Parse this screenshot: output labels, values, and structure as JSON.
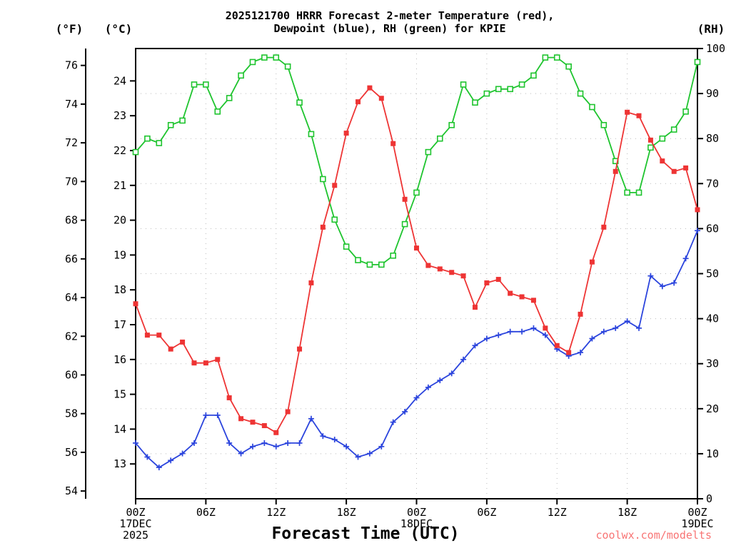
{
  "header": {
    "title_line1": "2025121700 HRRR Forecast 2-meter Temperature (red),",
    "title_line2": "Dewpoint (blue), RH (green) for KPIE",
    "unit_left_f": "(°F)",
    "unit_left_c": "(°C)",
    "unit_right_rh": "(RH)"
  },
  "footer": {
    "x_axis_label": "Forecast Time (UTC)",
    "watermark": "coolwx.com/modelts"
  },
  "colors": {
    "temperature": "#ee3434",
    "dewpoint": "#2b44dd",
    "rh": "#1ec42e",
    "grid": "#bbbbbb",
    "axis": "#000000",
    "watermark": "#f87474"
  },
  "chart_data": {
    "type": "line",
    "title": "2025121700 HRRR Forecast 2-meter Temperature (red), Dewpoint (blue), RH (green) for KPIE",
    "station": "KPIE",
    "model_run": "2025121700 HRRR",
    "x_axis": {
      "label": "Forecast Time (UTC)",
      "hours_span": 48,
      "tick_hours": [
        0,
        6,
        12,
        18,
        24,
        30,
        36,
        42,
        48
      ],
      "tick_labels": [
        "00Z",
        "06Z",
        "12Z",
        "18Z",
        "00Z",
        "06Z",
        "12Z",
        "18Z",
        "00Z"
      ],
      "date_labels": [
        {
          "hour": 0,
          "lines": [
            "17DEC",
            "2025"
          ]
        },
        {
          "hour": 24,
          "lines": [
            "18DEC"
          ]
        },
        {
          "hour": 48,
          "lines": [
            "19DEC"
          ]
        }
      ]
    },
    "y_axes": {
      "fahrenheit_ticks": [
        54,
        56,
        58,
        60,
        62,
        64,
        66,
        68,
        70,
        72,
        74,
        76
      ],
      "celsius_ticks": [
        13,
        14,
        15,
        16,
        17,
        18,
        19,
        20,
        21,
        22,
        23,
        24
      ],
      "celsius_range": [
        12.0,
        24.93
      ],
      "rh_ticks": [
        0,
        10,
        20,
        30,
        40,
        50,
        60,
        70,
        80,
        90,
        100
      ],
      "rh_range": [
        0,
        100
      ]
    },
    "series": [
      {
        "id": "temperature",
        "name": "2-meter Temperature (°C)",
        "axis": "celsius",
        "marker": "filled-square",
        "color": "#ee3434",
        "values": [
          17.6,
          16.7,
          16.7,
          16.3,
          16.5,
          15.9,
          15.9,
          16.0,
          14.9,
          14.3,
          14.2,
          14.1,
          13.9,
          14.5,
          16.3,
          18.2,
          19.8,
          21.0,
          22.5,
          23.4,
          23.8,
          23.5,
          22.2,
          20.6,
          19.2,
          18.7,
          18.6,
          18.5,
          18.4,
          17.5,
          18.2,
          18.3,
          17.9,
          17.8,
          17.7,
          16.9,
          16.4,
          16.2,
          17.3,
          18.8,
          19.8,
          21.4,
          23.1,
          23.0,
          22.3,
          21.7,
          21.4,
          21.5,
          20.3
        ]
      },
      {
        "id": "dewpoint",
        "name": "Dewpoint (°C)",
        "axis": "celsius",
        "marker": "plus",
        "color": "#2b44dd",
        "values": [
          13.6,
          13.2,
          12.9,
          13.1,
          13.3,
          13.6,
          14.4,
          14.4,
          13.6,
          13.3,
          13.5,
          13.6,
          13.5,
          13.6,
          13.6,
          14.3,
          13.8,
          13.7,
          13.5,
          13.2,
          13.3,
          13.5,
          14.2,
          14.5,
          14.9,
          15.2,
          15.4,
          15.6,
          16.0,
          16.4,
          16.6,
          16.7,
          16.8,
          16.8,
          16.9,
          16.7,
          16.3,
          16.1,
          16.2,
          16.6,
          16.8,
          16.9,
          17.1,
          16.9,
          18.4,
          18.1,
          18.2,
          18.9,
          19.7
        ]
      },
      {
        "id": "rh",
        "name": "Relative Humidity (%)",
        "axis": "rh",
        "marker": "open-square",
        "color": "#1ec42e",
        "values": [
          77,
          80,
          79,
          83,
          84,
          92,
          92,
          86,
          89,
          94,
          97,
          98,
          98,
          96,
          88,
          81,
          71,
          62,
          56,
          53,
          52,
          52,
          54,
          61,
          68,
          77,
          80,
          83,
          92,
          88,
          90,
          91,
          91,
          92,
          94,
          98,
          98,
          96,
          90,
          87,
          83,
          75,
          68,
          68,
          78,
          80,
          82,
          86,
          97
        ]
      }
    ]
  }
}
